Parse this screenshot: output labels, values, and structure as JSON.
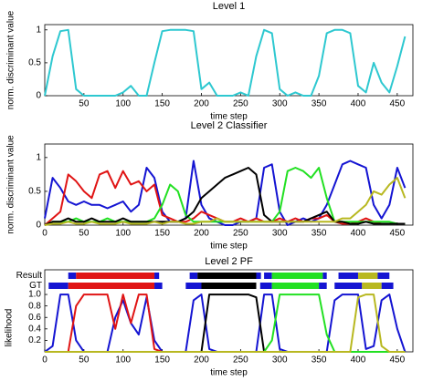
{
  "chart_data": [
    {
      "type": "line",
      "title": "Level 1",
      "xlabel": "time step",
      "ylabel": "norm. discriminant value",
      "xlim": [
        0,
        470
      ],
      "ylim": [
        0,
        1.08
      ],
      "xticks": [
        50,
        100,
        150,
        200,
        250,
        300,
        350,
        400,
        450
      ],
      "yticks": [
        0,
        0.5,
        1
      ],
      "x": [
        0,
        10,
        20,
        30,
        40,
        50,
        60,
        70,
        80,
        90,
        100,
        110,
        120,
        130,
        140,
        150,
        160,
        170,
        180,
        190,
        200,
        210,
        220,
        230,
        240,
        250,
        260,
        270,
        280,
        290,
        300,
        310,
        320,
        330,
        340,
        350,
        360,
        370,
        380,
        390,
        400,
        410,
        420,
        430,
        440,
        450,
        460
      ],
      "series": [
        {
          "color": "#2ec8d0",
          "values": [
            0,
            0.6,
            0.98,
            1,
            0.1,
            0,
            0,
            0,
            0,
            0,
            0.05,
            0.15,
            0,
            0,
            0.5,
            0.98,
            1,
            1,
            1,
            0.98,
            0.1,
            0.2,
            0,
            0,
            0,
            0.05,
            0,
            0.6,
            1,
            0.95,
            0.1,
            0,
            0.05,
            0,
            0,
            0.3,
            0.95,
            1,
            1,
            0.95,
            0.15,
            0.05,
            0.5,
            0.2,
            0.05,
            0.45,
            0.9
          ]
        }
      ]
    },
    {
      "type": "line",
      "title": "Level 2 Classifier",
      "xlabel": "time step",
      "ylabel": "norm. discriminant value",
      "xlim": [
        0,
        470
      ],
      "ylim": [
        0,
        1.2
      ],
      "xticks": [
        0,
        50,
        100,
        150,
        200,
        250,
        300,
        350,
        400,
        450
      ],
      "yticks": [
        0,
        0.5,
        1
      ],
      "x": [
        0,
        10,
        20,
        30,
        40,
        50,
        60,
        70,
        80,
        90,
        100,
        110,
        120,
        130,
        140,
        150,
        160,
        170,
        180,
        190,
        200,
        210,
        220,
        230,
        240,
        250,
        260,
        270,
        280,
        290,
        300,
        310,
        320,
        330,
        340,
        350,
        360,
        370,
        380,
        390,
        400,
        410,
        420,
        430,
        440,
        450,
        460
      ],
      "series": [
        {
          "color": "#1414d2",
          "values": [
            0.1,
            0.7,
            0.55,
            0.35,
            0.3,
            0.35,
            0.3,
            0.3,
            0.25,
            0.3,
            0.35,
            0.2,
            0.3,
            0.85,
            0.7,
            0.2,
            0.05,
            0.05,
            0.1,
            0.95,
            0.3,
            0.1,
            0.05,
            0,
            0,
            0.05,
            0.05,
            0.1,
            0.85,
            0.9,
            0.2,
            0,
            0.05,
            0.1,
            0.05,
            0.1,
            0.3,
            0.6,
            0.9,
            0.95,
            0.9,
            0.85,
            0.3,
            0.1,
            0.3,
            0.85,
            0.55
          ]
        },
        {
          "color": "#e01414",
          "values": [
            0,
            0.1,
            0.2,
            0.75,
            0.65,
            0.5,
            0.4,
            0.75,
            0.8,
            0.55,
            0.8,
            0.6,
            0.65,
            0.5,
            0.6,
            0.15,
            0.1,
            0.05,
            0.05,
            0.1,
            0.2,
            0.15,
            0.1,
            0.05,
            0.05,
            0.1,
            0.05,
            0.1,
            0.05,
            0.05,
            0.1,
            0.05,
            0.1,
            0.05,
            0.1,
            0.1,
            0.15,
            0.05,
            0.02,
            0.02,
            0.05,
            0.1,
            0.05,
            0.02,
            0.02,
            0.02,
            0.02
          ]
        },
        {
          "color": "#22e022",
          "values": [
            0,
            0.05,
            0.05,
            0.05,
            0.1,
            0.05,
            0.05,
            0.05,
            0.1,
            0.05,
            0.05,
            0.05,
            0.05,
            0.05,
            0.1,
            0.3,
            0.6,
            0.5,
            0.15,
            0.05,
            0.05,
            0.05,
            0.05,
            0.05,
            0.05,
            0.05,
            0.05,
            0.05,
            0.05,
            0.05,
            0.2,
            0.8,
            0.85,
            0.8,
            0.7,
            0.85,
            0.4,
            0.05,
            0.05,
            0.05,
            0.05,
            0.05,
            0.05,
            0.05,
            0.05,
            0.02,
            0.02
          ]
        },
        {
          "color": "#000000",
          "values": [
            0,
            0.05,
            0.05,
            0.1,
            0.05,
            0.05,
            0.1,
            0.05,
            0.05,
            0.05,
            0.1,
            0.05,
            0.05,
            0.05,
            0.05,
            0.05,
            0.05,
            0.05,
            0.1,
            0.2,
            0.4,
            0.5,
            0.6,
            0.7,
            0.75,
            0.8,
            0.85,
            0.75,
            0.15,
            0.05,
            0.05,
            0.05,
            0.05,
            0.05,
            0.1,
            0.15,
            0.2,
            0.05,
            0.05,
            0.02,
            0.02,
            0.05,
            0.02,
            0.02,
            0.02,
            0.02,
            0.02
          ]
        },
        {
          "color": "#b8b820",
          "values": [
            0,
            0.02,
            0.02,
            0.05,
            0.02,
            0.02,
            0.05,
            0.02,
            0.02,
            0.02,
            0.05,
            0.02,
            0.02,
            0.02,
            0.05,
            0.02,
            0.05,
            0.05,
            0.02,
            0.02,
            0.05,
            0.05,
            0.1,
            0.05,
            0.05,
            0.05,
            0.05,
            0.05,
            0.05,
            0.05,
            0.05,
            0.05,
            0.05,
            0.05,
            0.05,
            0.05,
            0.05,
            0.05,
            0.1,
            0.1,
            0.2,
            0.3,
            0.5,
            0.45,
            0.6,
            0.7,
            0.4
          ]
        }
      ]
    },
    {
      "type": "line",
      "title": "Level 2 PF",
      "xlabel": "time step",
      "ylabel": "likelihood",
      "xlim": [
        0,
        470
      ],
      "ylim": [
        0,
        1.43
      ],
      "xticks": [
        0,
        50,
        100,
        150,
        200,
        250,
        300,
        350,
        400,
        450
      ],
      "yticks": [
        0.2,
        0.4,
        0.6,
        0.8,
        {
          "value": 1,
          "label": "1.0"
        }
      ],
      "rows": [
        {
          "name": "Result",
          "segments": [
            {
              "start": 30,
              "end": 40,
              "color": "#1414d2"
            },
            {
              "start": 40,
              "end": 140,
              "color": "#e01414"
            },
            {
              "start": 140,
              "end": 146,
              "color": "#1414d2"
            },
            {
              "start": 185,
              "end": 195,
              "color": "#1414d2"
            },
            {
              "start": 195,
              "end": 270,
              "color": "#000000"
            },
            {
              "start": 270,
              "end": 276,
              "color": "#1414d2"
            },
            {
              "start": 280,
              "end": 290,
              "color": "#1414d2"
            },
            {
              "start": 290,
              "end": 355,
              "color": "#22e022"
            },
            {
              "start": 355,
              "end": 360,
              "color": "#1414d2"
            },
            {
              "start": 375,
              "end": 400,
              "color": "#1414d2"
            },
            {
              "start": 400,
              "end": 425,
              "color": "#b8b820"
            },
            {
              "start": 425,
              "end": 440,
              "color": "#1414d2"
            }
          ]
        },
        {
          "name": "GT",
          "segments": [
            {
              "start": 5,
              "end": 30,
              "color": "#1414d2"
            },
            {
              "start": 30,
              "end": 140,
              "color": "#e01414"
            },
            {
              "start": 140,
              "end": 150,
              "color": "#1414d2"
            },
            {
              "start": 180,
              "end": 200,
              "color": "#1414d2"
            },
            {
              "start": 200,
              "end": 270,
              "color": "#000000"
            },
            {
              "start": 275,
              "end": 290,
              "color": "#1414d2"
            },
            {
              "start": 290,
              "end": 350,
              "color": "#22e022"
            },
            {
              "start": 350,
              "end": 360,
              "color": "#1414d2"
            },
            {
              "start": 370,
              "end": 405,
              "color": "#1414d2"
            },
            {
              "start": 405,
              "end": 430,
              "color": "#b8b820"
            },
            {
              "start": 430,
              "end": 445,
              "color": "#1414d2"
            }
          ]
        }
      ],
      "x": [
        0,
        10,
        20,
        30,
        40,
        50,
        60,
        70,
        80,
        90,
        100,
        110,
        120,
        130,
        140,
        150,
        160,
        170,
        180,
        190,
        200,
        210,
        220,
        230,
        240,
        250,
        260,
        270,
        280,
        290,
        300,
        310,
        320,
        330,
        340,
        350,
        360,
        370,
        380,
        390,
        400,
        410,
        420,
        430,
        440,
        450,
        460
      ],
      "series": [
        {
          "color": "#1414d2",
          "values": [
            0,
            0.1,
            1,
            1,
            0.2,
            0,
            0,
            0,
            0,
            0.6,
            0.9,
            0.5,
            0.3,
            0.95,
            0.2,
            0,
            0,
            0,
            0,
            0.9,
            1,
            0.05,
            0,
            0,
            0,
            0,
            0,
            0,
            1,
            1,
            0.05,
            0,
            0,
            0,
            0,
            0,
            0,
            0.9,
            1,
            1,
            1,
            0.05,
            0.1,
            0.9,
            1,
            0.4,
            0
          ]
        },
        {
          "color": "#e01414",
          "values": [
            0,
            0,
            0,
            0,
            0.8,
            1,
            1,
            1,
            1,
            0.4,
            1,
            0.5,
            1,
            1,
            0.05,
            0,
            0,
            0,
            0,
            0,
            0,
            0,
            0,
            0,
            0,
            0,
            0,
            0,
            0,
            0,
            0,
            0,
            0,
            0,
            0,
            0,
            0,
            0,
            0,
            0,
            0,
            0,
            0,
            0,
            0,
            0,
            0
          ]
        },
        {
          "color": "#000000",
          "values": [
            0,
            0,
            0,
            0,
            0,
            0,
            0,
            0,
            0,
            0,
            0,
            0,
            0,
            0,
            0,
            0,
            0,
            0,
            0,
            0,
            0,
            1,
            1,
            1,
            1,
            1,
            1,
            0.95,
            0,
            0,
            0,
            0,
            0,
            0,
            0,
            0,
            0,
            0,
            0,
            0,
            0,
            0,
            0,
            0,
            0,
            0,
            0
          ]
        },
        {
          "color": "#22e022",
          "values": [
            0,
            0,
            0,
            0,
            0,
            0,
            0,
            0,
            0,
            0,
            0,
            0,
            0,
            0,
            0,
            0,
            0,
            0,
            0,
            0,
            0,
            0,
            0,
            0,
            0,
            0,
            0,
            0,
            0,
            0.2,
            1,
            1,
            1,
            1,
            1,
            1,
            0.3,
            0,
            0,
            0,
            0,
            0,
            0,
            0,
            0,
            0,
            0
          ]
        },
        {
          "color": "#b8b820",
          "values": [
            0,
            0,
            0,
            0,
            0,
            0,
            0,
            0,
            0,
            0,
            0,
            0,
            0,
            0,
            0,
            0,
            0,
            0,
            0,
            0,
            0,
            0,
            0,
            0,
            0,
            0,
            0,
            0,
            0,
            0,
            0,
            0,
            0,
            0,
            0,
            0,
            0,
            0,
            0,
            0,
            0.95,
            1,
            1,
            0.1,
            0,
            0,
            0
          ]
        }
      ]
    }
  ]
}
